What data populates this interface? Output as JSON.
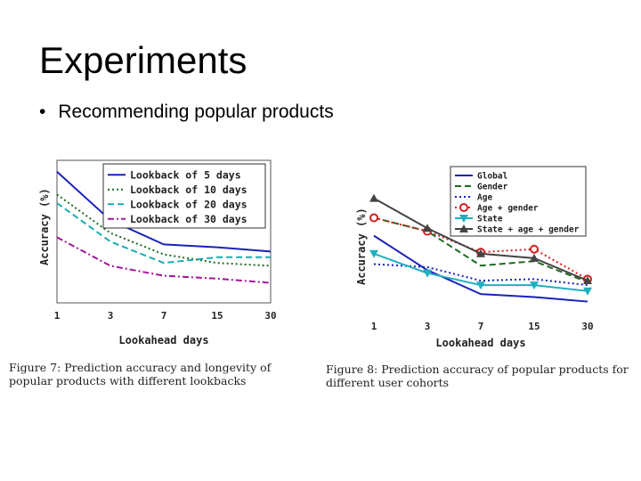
{
  "slide": {
    "title": "Experiments",
    "bullet": "•",
    "bullet_text": "Recommending popular products"
  },
  "chart_data": [
    {
      "type": "line",
      "title": "",
      "xlabel": "Lookahead days",
      "ylabel": "Accuracy (%)",
      "categories": [
        "1",
        "3",
        "7",
        "15",
        "30"
      ],
      "ylim": [
        0,
        100
      ],
      "legend_position": "top-right",
      "series": [
        {
          "name": "Lookback of 5 days",
          "color": "#1a22b8",
          "dash": "solid",
          "values": [
            92,
            58,
            41,
            39,
            36
          ]
        },
        {
          "name": "Lookback of 10 days",
          "color": "#1e6a1e",
          "dash": "dotted",
          "values": [
            76,
            49,
            34,
            28,
            26
          ]
        },
        {
          "name": "Lookback of 20 days",
          "color": "#1aaab0",
          "dash": "dashed",
          "values": [
            70,
            43,
            28,
            32,
            32
          ]
        },
        {
          "name": "Lookback of 30 days",
          "color": "#a0169a",
          "dash": "dashdot",
          "values": [
            46,
            26,
            19,
            17,
            14
          ]
        }
      ]
    },
    {
      "type": "line",
      "title": "",
      "xlabel": "Lookahead days",
      "ylabel": "Accuracy (%)",
      "categories": [
        "1",
        "3",
        "7",
        "15",
        "30"
      ],
      "ylim": [
        0,
        100
      ],
      "legend_position": "top-right",
      "series": [
        {
          "name": "Global",
          "color": "#1a22b8",
          "dash": "solid",
          "marker": "none",
          "values": [
            52,
            29,
            13,
            11,
            8
          ]
        },
        {
          "name": "Gender",
          "color": "#1e6a1e",
          "dash": "dashed",
          "marker": "none",
          "values": [
            64,
            55,
            32,
            35,
            21
          ]
        },
        {
          "name": "Age",
          "color": "#1a22b8",
          "dash": "dotted",
          "marker": "none",
          "values": [
            33,
            31,
            22,
            23,
            19
          ]
        },
        {
          "name": "Age + gender",
          "color": "#d42020",
          "dash": "dotted",
          "marker": "circle",
          "values": [
            64,
            55,
            41,
            43,
            23
          ]
        },
        {
          "name": "State",
          "color": "#20b0c0",
          "dash": "solid",
          "marker": "triangle-down",
          "values": [
            40,
            27,
            19,
            19,
            15
          ]
        },
        {
          "name": "State + age + gender",
          "color": "#444444",
          "dash": "solid",
          "marker": "triangle-up",
          "values": [
            77,
            57,
            40,
            37,
            22
          ]
        }
      ]
    }
  ],
  "captions": {
    "fig7": "Figure 7:  Prediction accuracy and longevity of popular products with different lookbacks",
    "fig8": "Figure 8:  Prediction accuracy of popular products for different user cohorts"
  }
}
